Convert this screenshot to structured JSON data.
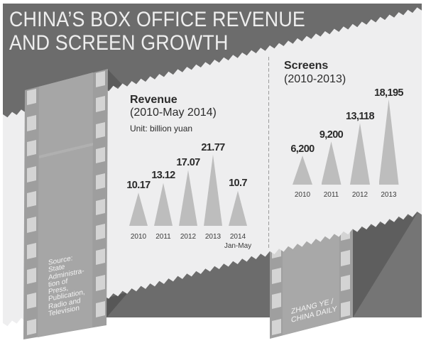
{
  "title": {
    "line1": "CHINA’S BOX OFFICE REVENUE",
    "line2": "AND SCREEN GROWTH"
  },
  "revenue": {
    "heading": "Revenue",
    "period": "(2010-May 2014)",
    "unit": "Unit: billion yuan"
  },
  "screens": {
    "heading": "Screens",
    "period": "(2010-2013)"
  },
  "source": {
    "lines": [
      "Source:",
      "State",
      "Administra-",
      "tion of",
      "Press,",
      "Publication,",
      "Radio and",
      "Television"
    ]
  },
  "credit": {
    "lines": [
      "ZHANG YE /",
      "CHINA DAILY"
    ]
  },
  "colors": {
    "panel": "#6c6c6c",
    "paper_band": "#eeeeef",
    "film": "#a3a3a3",
    "film_hole": "#d4d4d4",
    "triangle": "#bdbdbd",
    "title_text": "#eeeeee",
    "body_text": "#2b2b2b"
  },
  "chart_data": [
    {
      "type": "bar",
      "shape": "triangle",
      "title": "Revenue",
      "subtitle": "(2010-May 2014)",
      "ylabel": "Unit: billion yuan",
      "xlabel": "",
      "categories": [
        "2010",
        "2011",
        "2012",
        "2013",
        "2014"
      ],
      "category_sublabels": [
        "",
        "",
        "",
        "",
        "Jan-May"
      ],
      "values": [
        10.17,
        13.12,
        17.07,
        21.77,
        10.7
      ],
      "value_labels": [
        "10.17",
        "13.12",
        "17.07",
        "21.77",
        "10.7"
      ],
      "ylim": [
        0,
        25
      ],
      "grid": false,
      "legend": null
    },
    {
      "type": "bar",
      "shape": "triangle",
      "title": "Screens",
      "subtitle": "(2010-2013)",
      "ylabel": "",
      "xlabel": "",
      "categories": [
        "2010",
        "2011",
        "2012",
        "2013"
      ],
      "category_sublabels": [
        "",
        "",
        "",
        ""
      ],
      "values": [
        6200,
        9200,
        13118,
        18195
      ],
      "value_labels": [
        "6,200",
        "9,200",
        "13,118",
        "18,195"
      ],
      "ylim": [
        0,
        20000
      ],
      "grid": false,
      "legend": null
    }
  ]
}
